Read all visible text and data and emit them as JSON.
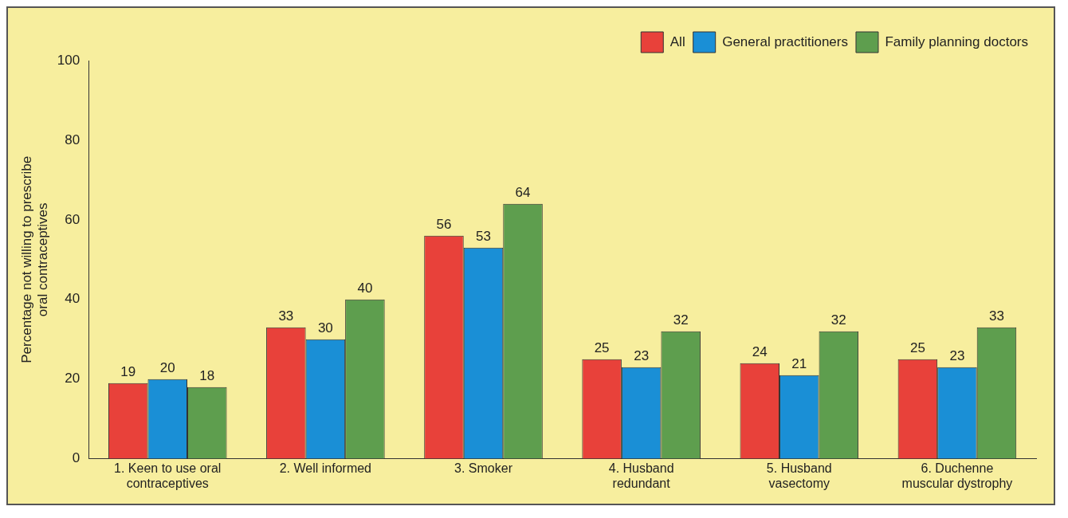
{
  "chart_data": {
    "type": "bar",
    "ylabel": "Percentage not willing to prescribe oral contraceptives",
    "categories": [
      "1. Keen to use oral contraceptives",
      "2. Well informed",
      "3. Smoker",
      "4. Husband redundant",
      "5. Husband vasectomy",
      "6. Duchenne muscular dystrophy"
    ],
    "series": [
      {
        "name": "All",
        "color": "#e8413a",
        "values": [
          19,
          33,
          56,
          25,
          24,
          25
        ]
      },
      {
        "name": "General practitioners",
        "color": "#1a8fd6",
        "values": [
          20,
          30,
          53,
          23,
          21,
          23
        ]
      },
      {
        "name": "Family planning doctors",
        "color": "#5e9e4e",
        "values": [
          18,
          40,
          64,
          32,
          32,
          33
        ]
      }
    ],
    "ylim": [
      0,
      100
    ],
    "yticks": [
      0,
      20,
      40,
      60,
      80,
      100
    ],
    "grid": false,
    "legend": "top right",
    "data_labels": true
  }
}
